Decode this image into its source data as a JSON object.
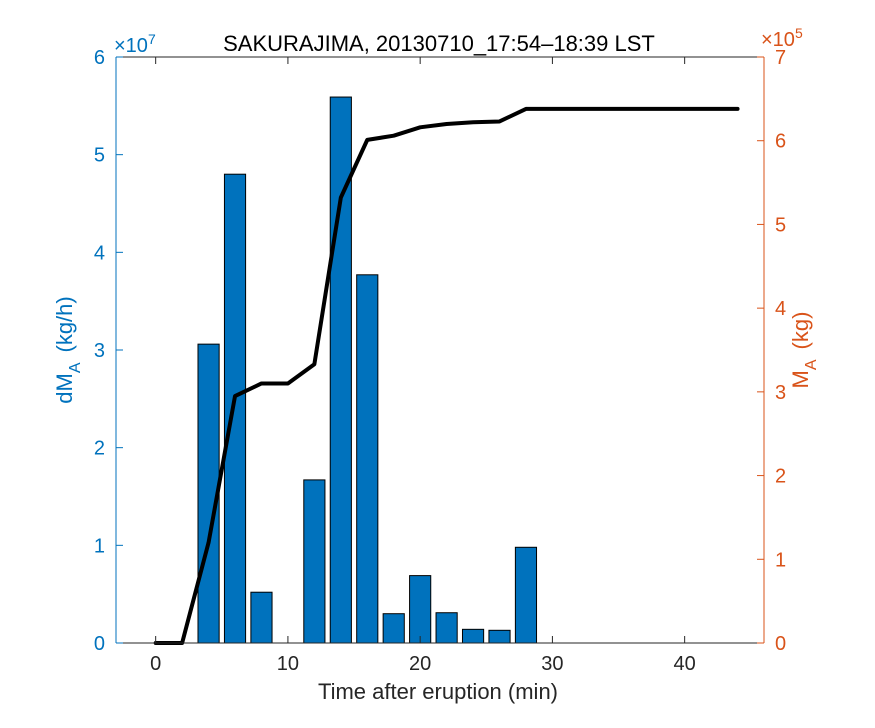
{
  "chart_data": {
    "type": "bar",
    "title": "SAKURAJIMA, 20130710_17:54–18:39 LST",
    "xlabel": "Time after eruption (min)",
    "xlim": [
      -3,
      46
    ],
    "xticks": [
      0,
      10,
      20,
      30,
      40
    ],
    "colors": {
      "left_axis": "#0072BD",
      "right_axis": "#D95319",
      "bars": "#0072BD",
      "line": "#000000",
      "axes": "#262626"
    },
    "left_axis": {
      "label_main": "dM",
      "label_sub": "A",
      "label_unit": "(kg/h)",
      "exponent_label": "×10",
      "exponent_power": "7",
      "ylim": [
        0,
        6
      ],
      "ticks": [
        0,
        1,
        2,
        3,
        4,
        5,
        6
      ]
    },
    "right_axis": {
      "label_main": "M",
      "label_sub": "A",
      "label_unit": "(kg)",
      "exponent_label": "×10",
      "exponent_power": "5",
      "ylim": [
        0,
        7
      ],
      "ticks": [
        0,
        1,
        2,
        3,
        4,
        5,
        6,
        7
      ]
    },
    "series": [
      {
        "kind": "bar",
        "axis": "left",
        "x": [
          0,
          2,
          4,
          6,
          8,
          10,
          12,
          14,
          16,
          18,
          20,
          22,
          24,
          26,
          28
        ],
        "values": [
          0,
          0,
          3.06,
          4.8,
          0.52,
          0,
          1.67,
          5.59,
          3.77,
          0.3,
          0.69,
          0.31,
          0.14,
          0.13,
          0.98
        ]
      },
      {
        "kind": "line",
        "axis": "right",
        "x": [
          0,
          2,
          4,
          6,
          8,
          10,
          12,
          14,
          16,
          18,
          20,
          22,
          24,
          26,
          28,
          30,
          32,
          34,
          36,
          38,
          40,
          42,
          44
        ],
        "values": [
          0,
          0,
          1.2,
          2.95,
          3.1,
          3.1,
          3.33,
          5.32,
          6.01,
          6.06,
          6.16,
          6.2,
          6.22,
          6.23,
          6.38,
          6.38,
          6.38,
          6.38,
          6.38,
          6.38,
          6.38,
          6.38,
          6.38
        ]
      }
    ]
  }
}
